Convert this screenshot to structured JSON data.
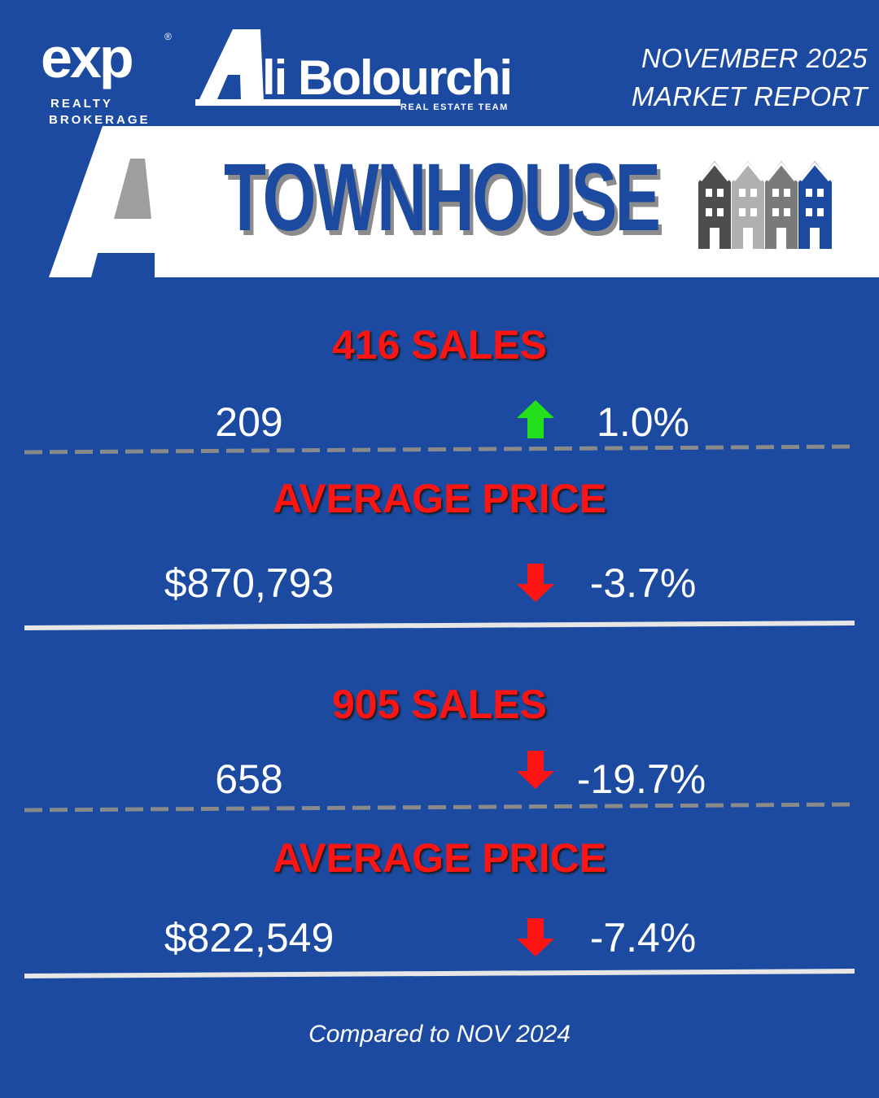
{
  "header": {
    "exp_logo": {
      "word": "exp",
      "registered": "®",
      "line1": "REALTY",
      "line2": "BROKERAGE"
    },
    "team_logo": {
      "name": "li Bolourchi",
      "subtitle": "REAL ESTATE TEAM"
    },
    "report_line1": "NOVEMBER 2025",
    "report_line2": "MARKET REPORT"
  },
  "banner": {
    "title": "TOWNHOUSE",
    "icon": "townhouse-icon"
  },
  "colors": {
    "background": "#1b4aa0",
    "heading": "#ff1414",
    "up": "#22e01a",
    "down": "#ff1414"
  },
  "sections": [
    {
      "heading": "416 SALES",
      "value": "209",
      "direction": "up",
      "change": "1.0%"
    },
    {
      "heading": "AVERAGE PRICE",
      "value": "$870,793",
      "direction": "down",
      "change": "-3.7%"
    },
    {
      "heading": "905 SALES",
      "value": "658",
      "direction": "down",
      "change": "-19.7%"
    },
    {
      "heading": "AVERAGE PRICE",
      "value": "$822,549",
      "direction": "down",
      "change": "-7.4%"
    }
  ],
  "footnote": "Compared to NOV 2024"
}
